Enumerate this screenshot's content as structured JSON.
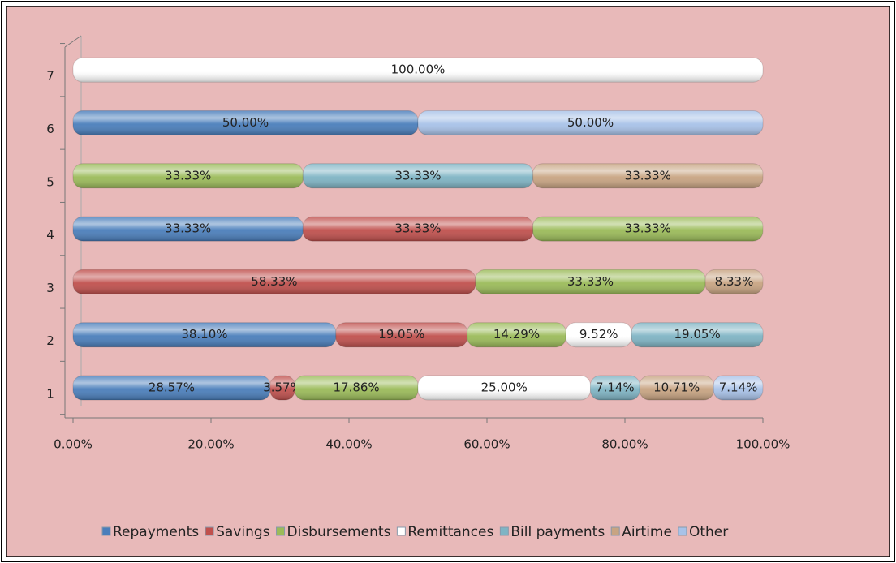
{
  "chart_data": {
    "type": "stacked-bar-horizontal",
    "categories": [
      "1",
      "2",
      "3",
      "4",
      "5",
      "6",
      "7"
    ],
    "series": [
      {
        "name": "Repayments",
        "color": "#4a7ebb",
        "values": [
          28.57,
          38.1,
          0,
          33.33,
          0,
          50.0,
          0
        ],
        "value_labels": [
          "28.57%",
          "38.10%",
          null,
          "33.33%",
          null,
          "50.00%",
          null
        ]
      },
      {
        "name": "Savings",
        "color": "#c0504d",
        "values": [
          3.57,
          19.05,
          58.33,
          33.33,
          0,
          0,
          0
        ],
        "value_labels": [
          "3.57%",
          "19.05%",
          "58.33%",
          "33.33%",
          null,
          null,
          null
        ]
      },
      {
        "name": "Disbursements",
        "color": "#9bbb59",
        "values": [
          17.86,
          14.29,
          33.33,
          33.33,
          33.33,
          0,
          0
        ],
        "value_labels": [
          "17.86%",
          "14.29%",
          "33.33%",
          "33.33%",
          "33.33%",
          null,
          null
        ]
      },
      {
        "name": "Remittances",
        "color": "#ffffff",
        "values": [
          25.0,
          9.52,
          0,
          0,
          0,
          0,
          100.0
        ],
        "value_labels": [
          "25.00%",
          "9.52%",
          null,
          null,
          null,
          null,
          "100.00%"
        ]
      },
      {
        "name": "Bill payments",
        "color": "#7fb4c4",
        "values": [
          7.14,
          19.05,
          0,
          0,
          33.33,
          0,
          0
        ],
        "value_labels": [
          "7.14%",
          "19.05%",
          null,
          null,
          "33.33%",
          null,
          null
        ]
      },
      {
        "name": "Airtime",
        "color": "#c8a482",
        "values": [
          10.71,
          0,
          8.33,
          0,
          33.33,
          0,
          0
        ],
        "value_labels": [
          "10.71%",
          null,
          "8.33%",
          null,
          "33.33%",
          null,
          null
        ]
      },
      {
        "name": "Other",
        "color": "#a8c2e8",
        "values": [
          7.14,
          0,
          0,
          0,
          0,
          50.0,
          0
        ],
        "value_labels": [
          "7.14%",
          null,
          null,
          null,
          null,
          "50.00%",
          null
        ]
      }
    ],
    "xlim": [
      0,
      100
    ],
    "xticks": [
      {
        "value": 0,
        "label": "0.00%"
      },
      {
        "value": 20,
        "label": "20.00%"
      },
      {
        "value": 40,
        "label": "40.00%"
      },
      {
        "value": 60,
        "label": "60.00%"
      },
      {
        "value": 80,
        "label": "80.00%"
      },
      {
        "value": 100,
        "label": "100.00%"
      }
    ],
    "legend": "bottom"
  }
}
